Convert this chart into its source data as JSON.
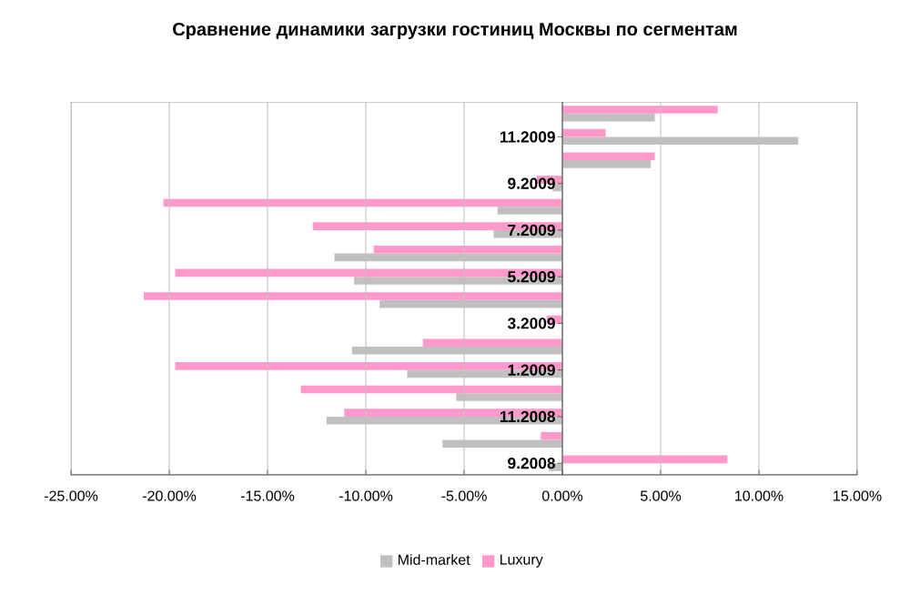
{
  "chart_data": {
    "type": "bar",
    "orientation": "horizontal",
    "title": "Сравнение динамики загрузки гостиниц Москвы по сегментам",
    "categories": [
      null,
      "11.2009",
      null,
      "9.2009",
      null,
      "7.2009",
      null,
      "5.2009",
      null,
      "3.2009",
      null,
      "1.2009",
      null,
      "11.2008",
      null,
      "9.2008"
    ],
    "series": [
      {
        "name": "Mid-market",
        "color": "#c0c0c0",
        "values": [
          4.7,
          12.0,
          4.5,
          -0.5,
          -3.3,
          -3.5,
          -11.6,
          -10.6,
          -9.3,
          0,
          -10.7,
          -7.9,
          -5.4,
          -12.0,
          -6.1,
          -0.7
        ]
      },
      {
        "name": "Luxury",
        "color": "#ff99cc",
        "values": [
          7.9,
          2.2,
          4.7,
          -1.3,
          -20.3,
          -12.7,
          -9.6,
          -19.7,
          -21.3,
          -0.8,
          -7.1,
          -19.7,
          -13.3,
          -11.1,
          -1.1,
          8.4
        ]
      }
    ],
    "xlim": [
      -25,
      15
    ],
    "xticks": [
      {
        "value": -25,
        "label": "-25.00%"
      },
      {
        "value": -20,
        "label": "-20.00%"
      },
      {
        "value": -15,
        "label": "-15.00%"
      },
      {
        "value": -10,
        "label": "-10.00%"
      },
      {
        "value": -5,
        "label": "-5.00%"
      },
      {
        "value": 0,
        "label": "0.00%"
      },
      {
        "value": 5,
        "label": "5.00%"
      },
      {
        "value": 10,
        "label": "10.00%"
      },
      {
        "value": 15,
        "label": "15.00%"
      }
    ],
    "grid": "x",
    "legend": "bottom"
  }
}
